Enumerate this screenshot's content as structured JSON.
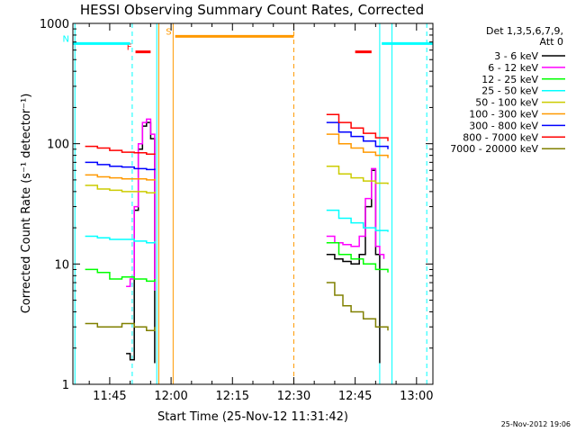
{
  "chart_data": {
    "type": "line",
    "title": "HESSI Observing Summary Count Rates, Corrected",
    "xlabel": "Start Time (25-Nov-12 11:31:42)",
    "ylabel": "Corrected Count Rate (s⁻¹ detector⁻¹)",
    "yscale": "log",
    "ylim": [
      1,
      1000
    ],
    "xlim_minutes_after_1130": [
      6,
      94
    ],
    "y_ticks": [
      {
        "v": 1,
        "label": "1"
      },
      {
        "v": 10,
        "label": "10"
      },
      {
        "v": 100,
        "label": "100"
      },
      {
        "v": 1000,
        "label": "1000"
      }
    ],
    "x_ticks": [
      {
        "m": 15,
        "label": "11:45"
      },
      {
        "m": 30,
        "label": "12:00"
      },
      {
        "m": 45,
        "label": "12:15"
      },
      {
        "m": 60,
        "label": "12:30"
      },
      {
        "m": 75,
        "label": "12:45"
      },
      {
        "m": 90,
        "label": "13:00"
      }
    ],
    "legend_header": [
      "Det 1,3,5,6,7,9,",
      "Att 0"
    ],
    "legend_position": "right",
    "series": [
      {
        "name": "3 - 6 keV",
        "color": "#000000",
        "x": [
          19.0,
          20.0,
          21.0,
          22.0,
          23.0,
          24.0,
          25.0,
          26.0,
          68.0,
          70.0,
          72.0,
          74.0,
          76.0,
          77.5,
          79.0,
          80.0,
          81.0
        ],
        "y": [
          1.8,
          1.6,
          28,
          90,
          140,
          150,
          110,
          1.5,
          12,
          11,
          10.5,
          10,
          12,
          30,
          60,
          12,
          1.5
        ]
      },
      {
        "name": "6 - 12 keV",
        "color": "#ff00ff",
        "x": [
          19.0,
          20.0,
          21.0,
          22.0,
          23.0,
          24.0,
          25.0,
          26.0,
          68.0,
          70.0,
          72.0,
          74.0,
          76.0,
          77.5,
          79.0,
          80.0,
          81.0,
          82.0
        ],
        "y": [
          6.5,
          7.5,
          30,
          100,
          150,
          160,
          120,
          6.0,
          17,
          15,
          14.5,
          14,
          17,
          35,
          62,
          14,
          12,
          11
        ]
      },
      {
        "name": "12 - 25 keV",
        "color": "#00ff00",
        "x": [
          9.0,
          12.0,
          15.0,
          18.0,
          21.0,
          24.0,
          26.0,
          68.0,
          71.0,
          74.0,
          77.0,
          80.0,
          83.0
        ],
        "y": [
          9.0,
          8.5,
          7.5,
          7.8,
          7.5,
          7.2,
          7.5,
          15,
          12,
          11,
          10,
          9,
          8.5
        ]
      },
      {
        "name": "25 - 50 keV",
        "color": "#00ffff",
        "x": [
          9.0,
          12.0,
          15.0,
          18.0,
          21.0,
          24.0,
          26.0,
          68.0,
          71.0,
          74.0,
          77.0,
          80.0,
          83.0
        ],
        "y": [
          17,
          16.5,
          16,
          16,
          15.5,
          15,
          15.5,
          28,
          24,
          22,
          20,
          19,
          18.5
        ]
      },
      {
        "name": "50 - 100 keV",
        "color": "#cccc00",
        "x": [
          9.0,
          12.0,
          15.0,
          18.0,
          21.0,
          24.0,
          26.0,
          68.0,
          71.0,
          74.0,
          77.0,
          80.0,
          83.0
        ],
        "y": [
          45,
          42,
          41,
          40,
          40,
          39,
          40,
          65,
          56,
          52,
          49,
          47,
          46
        ]
      },
      {
        "name": "100 - 300 keV",
        "color": "#ff9900",
        "x": [
          9.0,
          12.0,
          15.0,
          18.0,
          21.0,
          24.0,
          26.0,
          68.0,
          71.0,
          74.0,
          77.0,
          80.0,
          83.0
        ],
        "y": [
          55,
          53,
          52,
          51,
          51,
          50,
          51,
          120,
          100,
          92,
          85,
          80,
          76
        ]
      },
      {
        "name": "300 - 800 keV",
        "color": "#0000ff",
        "x": [
          9.0,
          12.0,
          15.0,
          18.0,
          21.0,
          24.0,
          26.0,
          68.0,
          71.0,
          74.0,
          77.0,
          80.0,
          83.0
        ],
        "y": [
          70,
          67,
          65,
          64,
          62,
          61,
          62,
          150,
          125,
          115,
          105,
          95,
          90
        ]
      },
      {
        "name": "800 - 7000 keV",
        "color": "#ff0000",
        "x": [
          9.0,
          12.0,
          15.0,
          18.0,
          21.0,
          24.0,
          26.0,
          68.0,
          71.0,
          74.0,
          77.0,
          80.0,
          83.0
        ],
        "y": [
          95,
          92,
          88,
          85,
          84,
          82,
          83,
          175,
          150,
          135,
          122,
          112,
          105
        ]
      },
      {
        "name": "7000 - 20000 keV",
        "color": "#808000",
        "x": [
          9.0,
          12.0,
          15.0,
          18.0,
          21.0,
          24.0,
          26.0,
          68.0,
          70.0,
          72.0,
          74.0,
          77.0,
          80.0,
          83.0
        ],
        "y": [
          3.2,
          3.0,
          3.0,
          3.2,
          3.0,
          2.8,
          3.0,
          7.0,
          5.5,
          4.5,
          4.0,
          3.5,
          3.0,
          2.8
        ]
      }
    ],
    "flags": [
      {
        "label": "F",
        "color": "#ff0000",
        "start": 21.3,
        "end": 25.0,
        "y": 580
      },
      {
        "label": "N",
        "color": "#00ffff",
        "start": 6,
        "end": 20.0,
        "y": 680
      },
      {
        "label": "S",
        "color": "#ff9900",
        "start": 31.0,
        "end": 60.0,
        "y": 780
      },
      {
        "label": "",
        "color": "#ff0000",
        "start": 75.0,
        "end": 79.0,
        "y": 580
      },
      {
        "label": "",
        "color": "#00ffff",
        "start": 81.5,
        "end": 94,
        "y": 680
      }
    ],
    "vertical_markers": [
      {
        "m": 6.5,
        "color": "#00ffff",
        "style": "solid"
      },
      {
        "m": 20.5,
        "color": "#00ffff",
        "style": "dashed"
      },
      {
        "m": 26.5,
        "color": "#00ffff",
        "style": "solid"
      },
      {
        "m": 27.0,
        "color": "#ff9900",
        "style": "solid"
      },
      {
        "m": 30.5,
        "color": "#ff9900",
        "style": "solid"
      },
      {
        "m": 60.0,
        "color": "#ff9900",
        "style": "dashed"
      },
      {
        "m": 81.0,
        "color": "#00ffff",
        "style": "solid"
      },
      {
        "m": 84.0,
        "color": "#00ffff",
        "style": "solid"
      },
      {
        "m": 92.5,
        "color": "#00ffff",
        "style": "dashed"
      }
    ]
  },
  "footer_timestamp": "25-Nov-2012 19:06"
}
